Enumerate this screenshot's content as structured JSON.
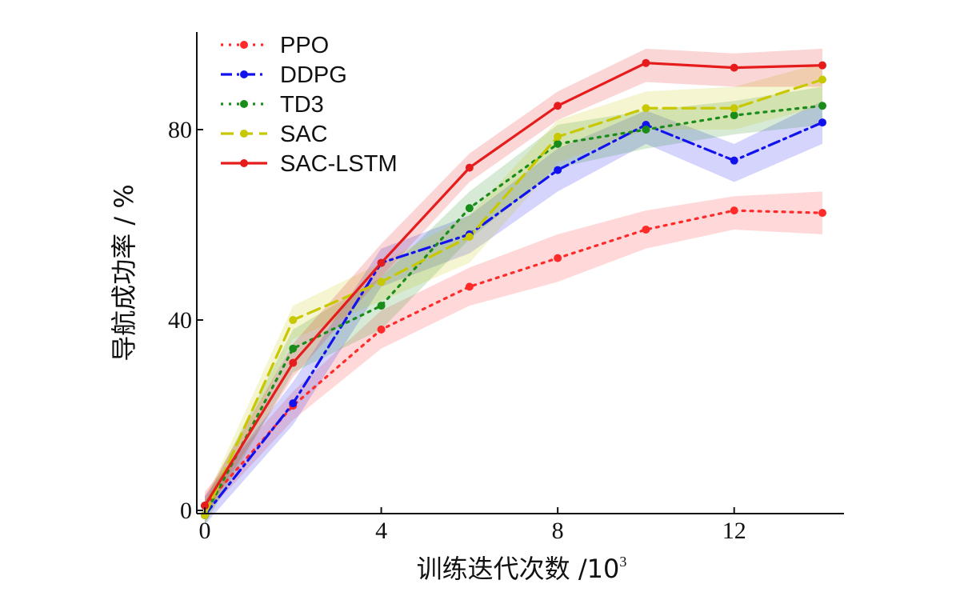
{
  "chart_data": {
    "type": "line",
    "title": "",
    "xlabel": "训练迭代次数 /10",
    "xlabel_exponent": "3",
    "ylabel": "导航成功率 / %",
    "xlim": [
      0,
      14.2
    ],
    "ylim": [
      -1,
      99
    ],
    "xticks": [
      0,
      4,
      8,
      12
    ],
    "yticks": [
      0,
      40,
      80
    ],
    "legend_position": "top-left",
    "x": [
      0,
      2,
      4,
      6,
      8,
      10,
      12,
      14
    ],
    "series": [
      {
        "name": "PPO",
        "color": "#ff2a2a",
        "dash": "dotted",
        "values": [
          1,
          22,
          38,
          47,
          53,
          59,
          63,
          62.5
        ],
        "band": [
          [
            -1,
            4
          ],
          [
            19,
            25
          ],
          [
            34,
            42
          ],
          [
            43,
            51
          ],
          [
            48,
            58
          ],
          [
            55,
            63
          ],
          [
            59,
            66
          ],
          [
            58,
            67
          ]
        ]
      },
      {
        "name": "DDPG",
        "color": "#1212ee",
        "dash": "dashdot",
        "values": [
          -1,
          22.5,
          52,
          58,
          71.5,
          81,
          73.5,
          81.5
        ],
        "band": [
          [
            -3,
            3
          ],
          [
            18,
            27
          ],
          [
            47,
            55
          ],
          [
            54,
            62
          ],
          [
            67,
            76
          ],
          [
            77,
            84
          ],
          [
            69,
            77
          ],
          [
            77,
            86
          ]
        ]
      },
      {
        "name": "TD3",
        "color": "#1a8c1a",
        "dash": "dotted",
        "values": [
          -1,
          34,
          43,
          63.5,
          77,
          80,
          83,
          85
        ],
        "band": [
          [
            -3,
            2
          ],
          [
            29,
            38
          ],
          [
            38,
            49
          ],
          [
            57,
            67
          ],
          [
            72,
            81
          ],
          [
            76,
            84
          ],
          [
            79,
            86
          ],
          [
            81,
            89
          ]
        ]
      },
      {
        "name": "SAC",
        "color": "#c8c800",
        "dash": "dashed",
        "values": [
          -1,
          40,
          48,
          57.5,
          78.5,
          84.5,
          84.5,
          90.5
        ],
        "band": [
          [
            -3,
            2
          ],
          [
            36,
            43
          ],
          [
            44,
            52
          ],
          [
            52,
            62
          ],
          [
            73,
            82
          ],
          [
            80,
            88
          ],
          [
            80,
            89
          ],
          [
            85,
            94
          ]
        ]
      },
      {
        "name": "SAC-LSTM",
        "color": "#e61c1c",
        "dash": "solid",
        "values": [
          1,
          31,
          52,
          72,
          85,
          94,
          93,
          93.5
        ],
        "band": [
          [
            -1,
            3
          ],
          [
            28,
            35
          ],
          [
            49,
            56
          ],
          [
            69,
            75
          ],
          [
            82,
            88
          ],
          [
            90,
            97
          ],
          [
            89,
            96
          ],
          [
            89,
            97
          ]
        ]
      }
    ]
  }
}
